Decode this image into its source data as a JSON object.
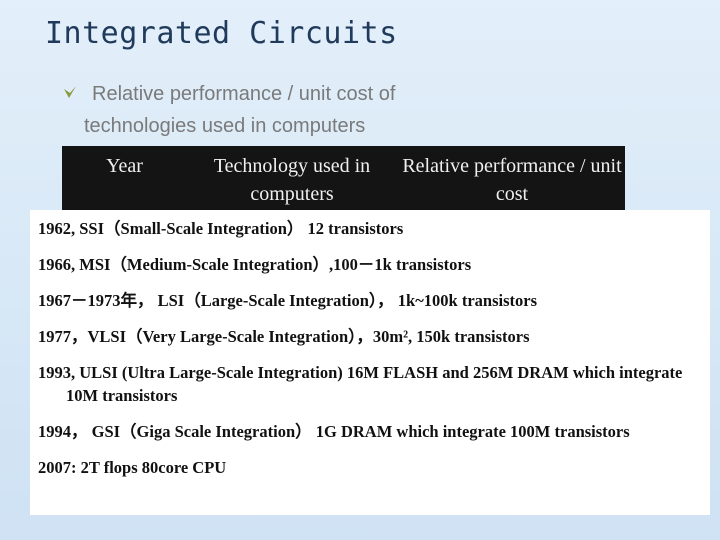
{
  "header": {
    "title": "Integrated Circuits"
  },
  "bullet": {
    "text": "Relative performance / unit  cost of technologies used in computers"
  },
  "table": {
    "header": [
      "Year",
      "Technology used in computers",
      "Relative performance / unit  cost"
    ]
  },
  "lines": [
    "1962, SSI（Small-Scale Integration） 12 transistors",
    "1966, MSI（Medium-Scale Integration）,100－1k transistors",
    "1967－1973年， LSI（Large-Scale Integration）， 1k~100k transistors",
    "1977，VLSI（Very Large-Scale Integration），30m², 150k transistors",
    "1993, ULSI (Ultra Large-Scale Integration) 16M FLASH and 256M DRAM which integrate 10M transistors",
    "1994， GSI（Giga Scale Integration） 1G DRAM which integrate 100M transistors",
    "2007: 2T flops 80core CPU"
  ]
}
